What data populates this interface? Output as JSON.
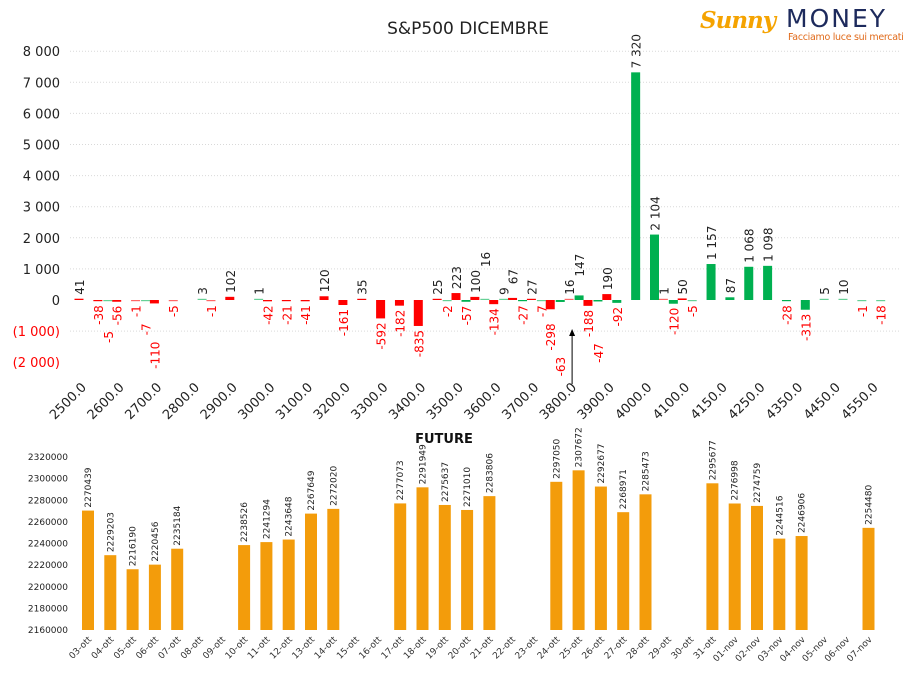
{
  "logo": {
    "brand_a": "Sunny",
    "brand_b": "MONEY",
    "tagline": "Facciamo luce sui mercati"
  },
  "colors": {
    "put": "#ff0000",
    "call": "#00b050",
    "future": "#f39c0b",
    "negative_label": "#ff0000"
  },
  "chart_data": [
    {
      "type": "bar",
      "title": "S&P500 DICEMBRE",
      "xlabel": "",
      "ylabel": "",
      "ylim": [
        -2000,
        8000
      ],
      "yticks": [
        8000,
        7000,
        6000,
        5000,
        4000,
        3000,
        2000,
        1000,
        0,
        -1000,
        -2000
      ],
      "ytick_labels": [
        "8 000",
        "7 000",
        "6 000",
        "5 000",
        "4 000",
        "3 000",
        "2 000",
        "1 000",
        "0",
        "(1 000)",
        "(2 000)"
      ],
      "grid": true,
      "category_count": 43,
      "x_tick_labels": [
        {
          "cat": 0,
          "label": "2500.0"
        },
        {
          "cat": 2,
          "label": "2600.0"
        },
        {
          "cat": 4,
          "label": "2700.0"
        },
        {
          "cat": 6,
          "label": "2800.0"
        },
        {
          "cat": 8,
          "label": "2900.0"
        },
        {
          "cat": 10,
          "label": "3000.0"
        },
        {
          "cat": 12,
          "label": "3100.0"
        },
        {
          "cat": 14,
          "label": "3200.0"
        },
        {
          "cat": 16,
          "label": "3300.0"
        },
        {
          "cat": 18,
          "label": "3400.0"
        },
        {
          "cat": 20,
          "label": "3500.0"
        },
        {
          "cat": 22,
          "label": "3600.0"
        },
        {
          "cat": 24,
          "label": "3700.0"
        },
        {
          "cat": 26,
          "label": "3800.0"
        },
        {
          "cat": 28,
          "label": "3900.0"
        },
        {
          "cat": 30,
          "label": "4000.0"
        },
        {
          "cat": 32,
          "label": "4100.0"
        },
        {
          "cat": 34,
          "label": "4150.0"
        },
        {
          "cat": 36,
          "label": "4250.0"
        },
        {
          "cat": 38,
          "label": "4350.0"
        },
        {
          "cat": 40,
          "label": "4450.0"
        },
        {
          "cat": 42,
          "label": "4550.0"
        }
      ],
      "series": [
        {
          "name": "red",
          "points": [
            [
              0,
              41
            ],
            [
              1,
              -38
            ],
            [
              2,
              -56
            ],
            [
              3,
              -1
            ],
            [
              4,
              -110
            ],
            [
              5,
              -5
            ],
            [
              7,
              -1
            ],
            [
              8,
              102
            ],
            [
              10,
              -42
            ],
            [
              11,
              -21
            ],
            [
              12,
              -41
            ],
            [
              13,
              120
            ],
            [
              14,
              -161
            ],
            [
              15,
              35
            ],
            [
              16,
              -592
            ],
            [
              17,
              -182
            ],
            [
              18,
              -835
            ],
            [
              19,
              25
            ],
            [
              20,
              223
            ],
            [
              21,
              100
            ],
            [
              22,
              -134
            ],
            [
              23,
              67
            ],
            [
              24,
              27
            ],
            [
              25,
              -298
            ],
            [
              26,
              16
            ],
            [
              27,
              -188
            ],
            [
              28,
              190
            ],
            [
              31,
              1
            ],
            [
              32,
              50
            ]
          ]
        },
        {
          "name": "green",
          "points": [
            [
              1,
              -5
            ],
            [
              3,
              -7
            ],
            [
              6,
              3
            ],
            [
              9,
              1
            ],
            [
              19,
              -2
            ],
            [
              20,
              -57
            ],
            [
              21,
              16
            ],
            [
              22,
              9
            ],
            [
              23,
              -27
            ],
            [
              24,
              -7
            ],
            [
              25,
              -63
            ],
            [
              26,
              147
            ],
            [
              27,
              -47
            ],
            [
              28,
              -92
            ],
            [
              29,
              7320
            ],
            [
              30,
              2104
            ],
            [
              31,
              -120
            ],
            [
              32,
              -5
            ],
            [
              33,
              1157
            ],
            [
              34,
              87
            ],
            [
              35,
              1068
            ],
            [
              36,
              1098
            ],
            [
              37,
              -28
            ],
            [
              38,
              -313
            ],
            [
              39,
              5
            ],
            [
              40,
              10
            ],
            [
              41,
              -1
            ],
            [
              42,
              -18
            ]
          ]
        }
      ],
      "annotation": {
        "type": "arrow",
        "at_category": 26,
        "direction": "up"
      }
    },
    {
      "type": "bar",
      "title": "FUTURE",
      "ylim": [
        2160000,
        2320000
      ],
      "yticks": [
        2320000,
        2300000,
        2280000,
        2260000,
        2240000,
        2220000,
        2200000,
        2180000,
        2160000
      ],
      "categories": [
        "03-ott",
        "04-ott",
        "05-ott",
        "06-ott",
        "07-ott",
        "08-ott",
        "09-ott",
        "10-ott",
        "11-ott",
        "12-ott",
        "13-ott",
        "14-ott",
        "15-ott",
        "16-ott",
        "17-ott",
        "18-ott",
        "19-ott",
        "20-ott",
        "21-ott",
        "22-ott",
        "23-ott",
        "24-ott",
        "25-ott",
        "26-ott",
        "27-ott",
        "28-ott",
        "29-ott",
        "30-ott",
        "31-ott",
        "01-nov",
        "02-nov",
        "03-nov",
        "04-nov",
        "05-nov",
        "06-nov",
        "07-nov"
      ],
      "values": [
        2270439,
        2229203,
        2216190,
        2220456,
        2235184,
        null,
        null,
        2238526,
        2241294,
        2243648,
        2267649,
        2272020,
        null,
        null,
        2277073,
        2291949,
        2275637,
        2271010,
        2283806,
        null,
        null,
        2297050,
        2307672,
        2292677,
        2268971,
        2285473,
        null,
        null,
        2295677,
        2276998,
        2274759,
        2244516,
        2246906,
        null,
        null,
        2254480
      ]
    }
  ]
}
